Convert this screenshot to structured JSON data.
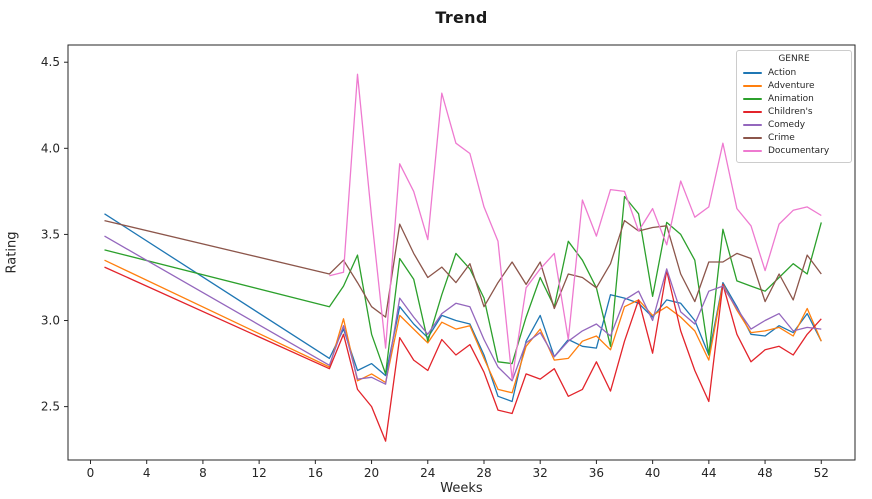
{
  "chart_data": {
    "type": "line",
    "title": "Trend",
    "xlabel": "Weeks",
    "ylabel": "Rating",
    "grid": false,
    "legend": {
      "title": "GENRE",
      "position": "upper right"
    },
    "xlim": [
      -1.6,
      54.4
    ],
    "ylim": [
      2.19,
      4.6
    ],
    "xticks": [
      0,
      4,
      8,
      12,
      16,
      20,
      24,
      28,
      32,
      36,
      40,
      44,
      48,
      52
    ],
    "yticks": [
      2.5,
      3.0,
      3.5,
      4.0,
      4.5
    ],
    "x": [
      1,
      17,
      18,
      19,
      20,
      21,
      22,
      23,
      24,
      25,
      26,
      27,
      28,
      29,
      30,
      31,
      32,
      33,
      34,
      35,
      36,
      37,
      38,
      39,
      40,
      41,
      42,
      43,
      44,
      45,
      46,
      47,
      48,
      49,
      50,
      51,
      52
    ],
    "series": [
      {
        "name": "Action",
        "color": "#1f77b4",
        "values": [
          3.62,
          2.78,
          2.95,
          2.71,
          2.75,
          2.68,
          3.08,
          2.98,
          2.9,
          3.03,
          3.0,
          2.98,
          2.8,
          2.56,
          2.53,
          2.88,
          3.03,
          2.79,
          2.89,
          2.85,
          2.84,
          3.15,
          3.13,
          3.1,
          3.02,
          3.12,
          3.1,
          3.0,
          2.8,
          3.22,
          3.08,
          2.92,
          2.91,
          2.97,
          2.93,
          3.04,
          2.88
        ]
      },
      {
        "name": "Adventure",
        "color": "#ff7f0e",
        "values": [
          3.35,
          2.73,
          3.01,
          2.65,
          2.69,
          2.64,
          3.03,
          2.95,
          2.87,
          2.99,
          2.95,
          2.97,
          2.78,
          2.6,
          2.58,
          2.85,
          2.95,
          2.77,
          2.78,
          2.88,
          2.91,
          2.83,
          3.08,
          3.12,
          3.03,
          3.08,
          3.02,
          2.94,
          2.77,
          3.21,
          3.06,
          2.93,
          2.94,
          2.96,
          2.91,
          3.07,
          2.88
        ]
      },
      {
        "name": "Animation",
        "color": "#2ca02c",
        "values": [
          3.41,
          3.08,
          3.2,
          3.38,
          2.92,
          2.69,
          3.36,
          3.24,
          2.88,
          3.15,
          3.39,
          3.3,
          3.13,
          2.76,
          2.75,
          3.02,
          3.25,
          3.08,
          3.46,
          3.35,
          3.19,
          2.85,
          3.72,
          3.62,
          3.14,
          3.57,
          3.5,
          3.35,
          2.8,
          3.53,
          3.23,
          3.2,
          3.17,
          3.25,
          3.33,
          3.27,
          3.57
        ]
      },
      {
        "name": "Children's",
        "color": "#e3242b",
        "values": [
          3.31,
          2.72,
          2.92,
          2.6,
          2.5,
          2.3,
          2.9,
          2.77,
          2.71,
          2.89,
          2.8,
          2.86,
          2.7,
          2.48,
          2.46,
          2.69,
          2.66,
          2.72,
          2.56,
          2.6,
          2.76,
          2.59,
          2.88,
          3.12,
          2.81,
          3.29,
          2.94,
          2.71,
          2.53,
          3.21,
          2.92,
          2.76,
          2.83,
          2.85,
          2.8,
          2.92,
          3.01
        ]
      },
      {
        "name": "Comedy",
        "color": "#9467bd",
        "values": [
          3.49,
          2.74,
          2.97,
          2.66,
          2.67,
          2.63,
          3.13,
          3.02,
          2.92,
          3.04,
          3.1,
          3.08,
          2.89,
          2.73,
          2.65,
          2.87,
          2.93,
          2.79,
          2.88,
          2.94,
          2.98,
          2.91,
          3.12,
          3.17,
          3.0,
          3.3,
          3.05,
          2.98,
          3.17,
          3.2,
          3.07,
          2.95,
          3.0,
          3.04,
          2.94,
          2.96,
          2.95
        ]
      },
      {
        "name": "Crime",
        "color": "#8c564b",
        "values": [
          3.58,
          3.27,
          3.35,
          3.22,
          3.08,
          3.02,
          3.56,
          3.39,
          3.25,
          3.31,
          3.22,
          3.33,
          3.08,
          3.22,
          3.34,
          3.21,
          3.34,
          3.07,
          3.27,
          3.25,
          3.19,
          3.33,
          3.58,
          3.52,
          3.54,
          3.55,
          3.27,
          3.11,
          3.34,
          3.34,
          3.39,
          3.36,
          3.11,
          3.27,
          3.12,
          3.38,
          3.27
        ]
      },
      {
        "name": "Documentary",
        "color": "#ee7ad0",
        "values": [
          null,
          3.26,
          3.28,
          4.43,
          3.6,
          2.84,
          3.91,
          3.75,
          3.47,
          4.32,
          4.03,
          3.97,
          3.66,
          3.46,
          2.66,
          3.19,
          3.3,
          3.39,
          2.89,
          3.7,
          3.49,
          3.76,
          3.75,
          3.52,
          3.65,
          3.44,
          3.81,
          3.6,
          3.66,
          4.03,
          3.65,
          3.55,
          3.29,
          3.56,
          3.64,
          3.66,
          3.61
        ]
      }
    ]
  }
}
